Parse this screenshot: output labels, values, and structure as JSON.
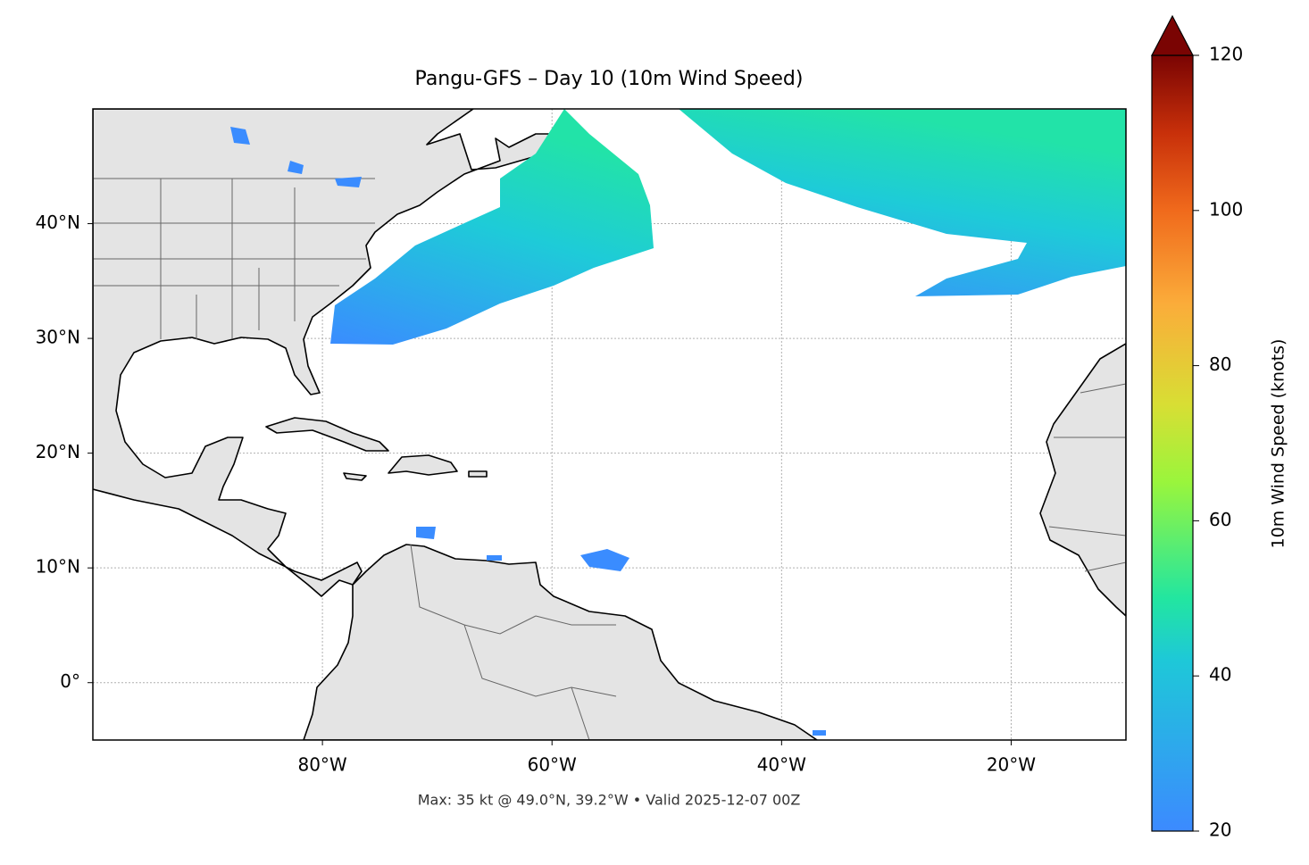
{
  "chart_data": {
    "type": "map",
    "title": "Pangu-GFS – Day 10 (10m Wind Speed)",
    "caption": "Max: 35 kt @ 49.0°N, 39.2°W • Valid 2025-12-07 00Z",
    "xlim": [
      -100,
      -10
    ],
    "ylim": [
      -5,
      50
    ],
    "xticks": [
      {
        "value": -80,
        "label": "80°W"
      },
      {
        "value": -60,
        "label": "60°W"
      },
      {
        "value": -40,
        "label": "40°W"
      },
      {
        "value": -20,
        "label": "20°W"
      }
    ],
    "yticks": [
      {
        "value": 0,
        "label": "0°"
      },
      {
        "value": 10,
        "label": "10°N"
      },
      {
        "value": 20,
        "label": "20°N"
      },
      {
        "value": 30,
        "label": "30°N"
      },
      {
        "value": 40,
        "label": "40°N"
      }
    ],
    "grid": true,
    "colorbar": {
      "label": "10m Wind Speed (knots)",
      "lim": [
        20,
        120
      ],
      "ticks": [
        20,
        40,
        60,
        80,
        100,
        120
      ]
    }
  }
}
